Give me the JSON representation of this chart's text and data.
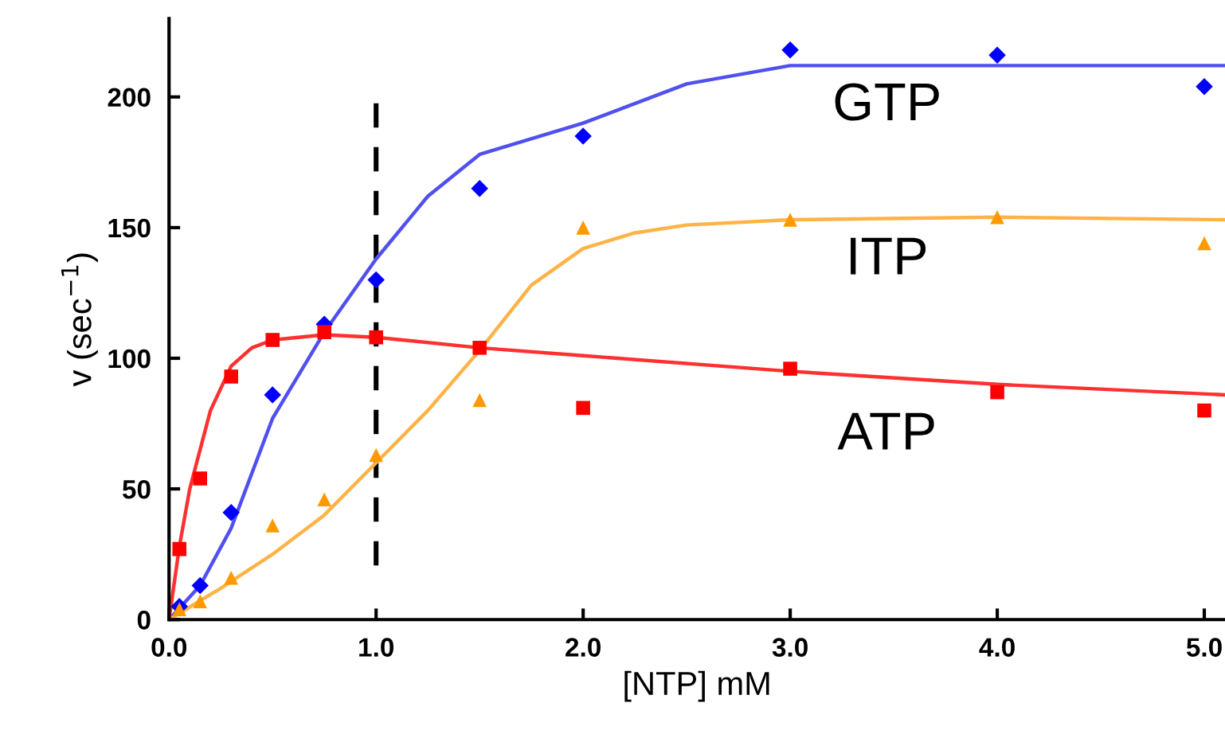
{
  "chart_data": {
    "type": "scatter",
    "xlabel": "[NTP] mM",
    "ylabel": "v (sec$^{−1}$)",
    "xlim": [
      0,
      5.1
    ],
    "ylim": [
      0,
      230
    ],
    "xticks": [
      {
        "value": 0,
        "label": "0.0"
      },
      {
        "value": 1,
        "label": "1.0"
      },
      {
        "value": 2,
        "label": "2.0"
      },
      {
        "value": 3,
        "label": "3.0"
      },
      {
        "value": 4,
        "label": "4.0"
      },
      {
        "value": 5,
        "label": "5.0"
      }
    ],
    "yticks": [
      0,
      50,
      100,
      150,
      200
    ],
    "grid": false,
    "series": [
      {
        "marker": "diamond",
        "color": "#0000ff",
        "x": [
          0.05,
          0.15,
          0.3,
          0.5,
          0.75,
          1.0,
          1.5,
          2.0,
          3.0,
          4.0,
          5.0
        ],
        "values": [
          5,
          13,
          41,
          86,
          113,
          130,
          165,
          185,
          218,
          216,
          204
        ]
      },
      {
        "marker": "triangle",
        "color": "#ff9900",
        "x": [
          0.05,
          0.15,
          0.3,
          0.5,
          0.75,
          1.0,
          1.5,
          2.0,
          3.0,
          4.0,
          5.0
        ],
        "values": [
          4,
          7,
          16,
          36,
          46,
          63,
          84,
          150,
          153,
          154,
          144
        ]
      },
      {
        "marker": "square",
        "color": "#ff0000",
        "x": [
          0.05,
          0.15,
          0.3,
          0.5,
          0.75,
          1.0,
          1.5,
          2.0,
          3.0,
          4.0,
          5.0
        ],
        "values": [
          27,
          54,
          93,
          107,
          110,
          108,
          104,
          81,
          96,
          87,
          80
        ]
      },
      {
        "type": "line",
        "name": "GTP",
        "color": "#5050f0",
        "x": [
          0,
          0.15,
          0.3,
          0.5,
          0.75,
          1.0,
          1.25,
          1.5,
          2.0,
          2.5,
          3.0,
          4.0,
          5.1
        ],
        "values": [
          0,
          13,
          35,
          77,
          110,
          138,
          162,
          178,
          190,
          205,
          212,
          212,
          212
        ]
      },
      {
        "type": "line",
        "name": "ITP",
        "color": "#ffb347",
        "x": [
          0,
          0.25,
          0.5,
          0.75,
          1.0,
          1.25,
          1.5,
          1.75,
          2.0,
          2.25,
          2.5,
          3.0,
          4.0,
          5.1
        ],
        "values": [
          0,
          12,
          25,
          40,
          60,
          80,
          103,
          128,
          142,
          148,
          151,
          153,
          154,
          153
        ]
      },
      {
        "type": "line",
        "name": "ATP",
        "color": "#ff3030",
        "x": [
          0,
          0.05,
          0.1,
          0.15,
          0.2,
          0.3,
          0.4,
          0.5,
          0.75,
          1.0,
          1.5,
          2.0,
          3.0,
          4.0,
          5.1
        ],
        "values": [
          0,
          28,
          50,
          65,
          80,
          97,
          104,
          107,
          109,
          108,
          104,
          101,
          95,
          90,
          86
        ]
      }
    ],
    "ref_lines": [
      {
        "axis": "x",
        "value": 1.0,
        "color": "#000000",
        "line_style": "dashed"
      }
    ]
  }
}
